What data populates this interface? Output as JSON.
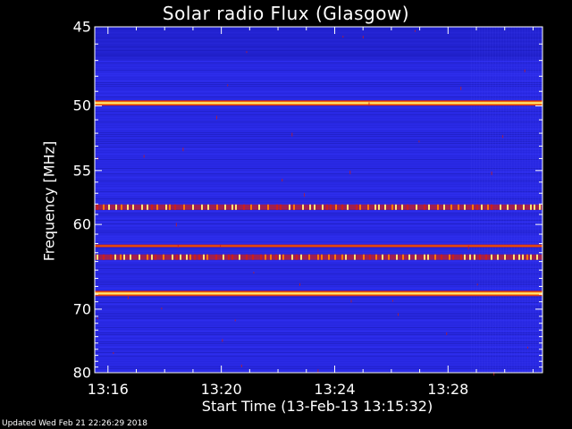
{
  "chart_data": {
    "type": "heatmap",
    "title": "Solar radio Flux (Glasgow)",
    "ylabel": "Frequency [MHz]",
    "xlabel": "Start Time (13-Feb-13 13:15:32)",
    "yticks": [
      45,
      50,
      55,
      60,
      70,
      80
    ],
    "xticks": [
      "13:16",
      "13:20",
      "13:24",
      "13:28"
    ],
    "ylim": [
      45,
      80
    ],
    "y_scale": "reciprocal",
    "xlim": [
      "13:15:32",
      "13:31:20"
    ],
    "colormap": [
      "#1a1ab4",
      "#2a2ae6",
      "#c81e1e",
      "#ff7800",
      "#ffe678"
    ],
    "bright_bands": [
      {
        "freq_mhz": 49.8,
        "intensity": "high",
        "continuous": true
      },
      {
        "freq_mhz": 58.3,
        "intensity": "high",
        "continuous": false
      },
      {
        "freq_mhz": 62.3,
        "intensity": "medium",
        "continuous": true
      },
      {
        "freq_mhz": 63.5,
        "intensity": "high",
        "continuous": false
      },
      {
        "freq_mhz": 67.9,
        "intensity": "high",
        "continuous": true
      }
    ]
  },
  "footer": "Updated Wed Feb 21 22:26:29 2018"
}
